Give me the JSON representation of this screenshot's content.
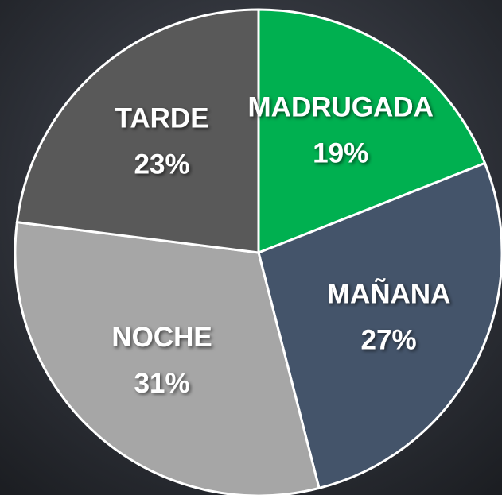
{
  "chart_data": {
    "type": "pie",
    "categories": [
      "MADRUGADA",
      "MAÑANA",
      "NOCHE",
      "TARDE"
    ],
    "values": [
      19,
      27,
      31,
      23
    ],
    "value_labels": [
      "19%",
      "27%",
      "31%",
      "23%"
    ],
    "colors": [
      "#00b050",
      "#44546a",
      "#a6a6a6",
      "#595959"
    ]
  }
}
